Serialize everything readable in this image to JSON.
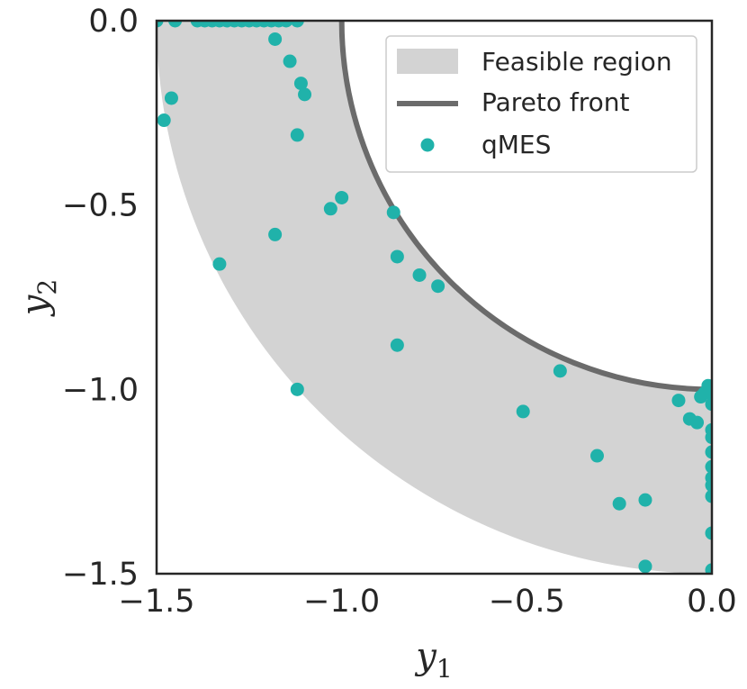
{
  "chart_data": {
    "type": "scatter",
    "title": "",
    "xlabel": "y",
    "xlabel_sub": "1",
    "ylabel": "y",
    "ylabel_sub": "2",
    "xlim": [
      -1.5,
      0.0
    ],
    "ylim": [
      -1.5,
      0.0
    ],
    "xticks": [
      -1.5,
      -1.0,
      -0.5,
      0.0
    ],
    "yticks": [
      0.0,
      -0.5,
      -1.0,
      -1.5
    ],
    "xtick_labels": [
      "−1.5",
      "−1.0",
      "−0.5",
      "0.0"
    ],
    "ytick_labels": [
      "0.0",
      "−0.5",
      "−1.0",
      "−1.5"
    ],
    "grid": false,
    "legend_position": "top-right",
    "feasible_region": {
      "name": "Feasible region",
      "inner_radius": 1.0,
      "outer_radius": 1.5,
      "color": "#d3d3d3"
    },
    "pareto_front": {
      "name": "Pareto front",
      "radius": 1.0,
      "color": "#6b6b6b"
    },
    "series": [
      {
        "name": "qMES",
        "color": "#20b2aa",
        "points": [
          [
            -1.5,
            0.0
          ],
          [
            -1.45,
            0.0
          ],
          [
            -1.39,
            0.0
          ],
          [
            -1.37,
            0.0
          ],
          [
            -1.35,
            0.0
          ],
          [
            -1.33,
            0.0
          ],
          [
            -1.31,
            0.0
          ],
          [
            -1.29,
            0.0
          ],
          [
            -1.27,
            0.0
          ],
          [
            -1.25,
            0.0
          ],
          [
            -1.23,
            0.0
          ],
          [
            -1.21,
            0.0
          ],
          [
            -1.19,
            0.0
          ],
          [
            -1.17,
            0.0
          ],
          [
            -1.15,
            0.0
          ],
          [
            -1.12,
            0.0
          ],
          [
            -1.18,
            -0.05
          ],
          [
            -1.14,
            -0.11
          ],
          [
            -1.11,
            -0.17
          ],
          [
            -1.1,
            -0.2
          ],
          [
            -1.12,
            -0.31
          ],
          [
            -1.46,
            -0.21
          ],
          [
            -1.48,
            -0.27
          ],
          [
            -1.0,
            -0.48
          ],
          [
            -1.03,
            -0.51
          ],
          [
            -0.86,
            -0.52
          ],
          [
            -1.18,
            -0.58
          ],
          [
            -1.33,
            -0.66
          ],
          [
            -0.85,
            -0.64
          ],
          [
            -0.79,
            -0.69
          ],
          [
            -0.74,
            -0.72
          ],
          [
            -0.85,
            -0.88
          ],
          [
            -1.12,
            -1.0
          ],
          [
            -0.41,
            -0.95
          ],
          [
            -0.51,
            -1.06
          ],
          [
            -0.09,
            -1.03
          ],
          [
            -0.06,
            -1.08
          ],
          [
            -0.04,
            -1.09
          ],
          [
            -0.03,
            -1.02
          ],
          [
            -0.02,
            -1.01
          ],
          [
            -0.01,
            -0.99
          ],
          [
            0.0,
            -1.01
          ],
          [
            0.0,
            -1.04
          ],
          [
            0.0,
            -1.11
          ],
          [
            0.0,
            -1.13
          ],
          [
            0.0,
            -1.17
          ],
          [
            0.0,
            -1.21
          ],
          [
            0.0,
            -1.24
          ],
          [
            0.0,
            -1.26
          ],
          [
            0.0,
            -1.29
          ],
          [
            0.0,
            -1.39
          ],
          [
            0.0,
            -1.49
          ],
          [
            -0.31,
            -1.18
          ],
          [
            -0.25,
            -1.31
          ],
          [
            -0.18,
            -1.3
          ],
          [
            -0.18,
            -1.48
          ]
        ]
      }
    ]
  }
}
